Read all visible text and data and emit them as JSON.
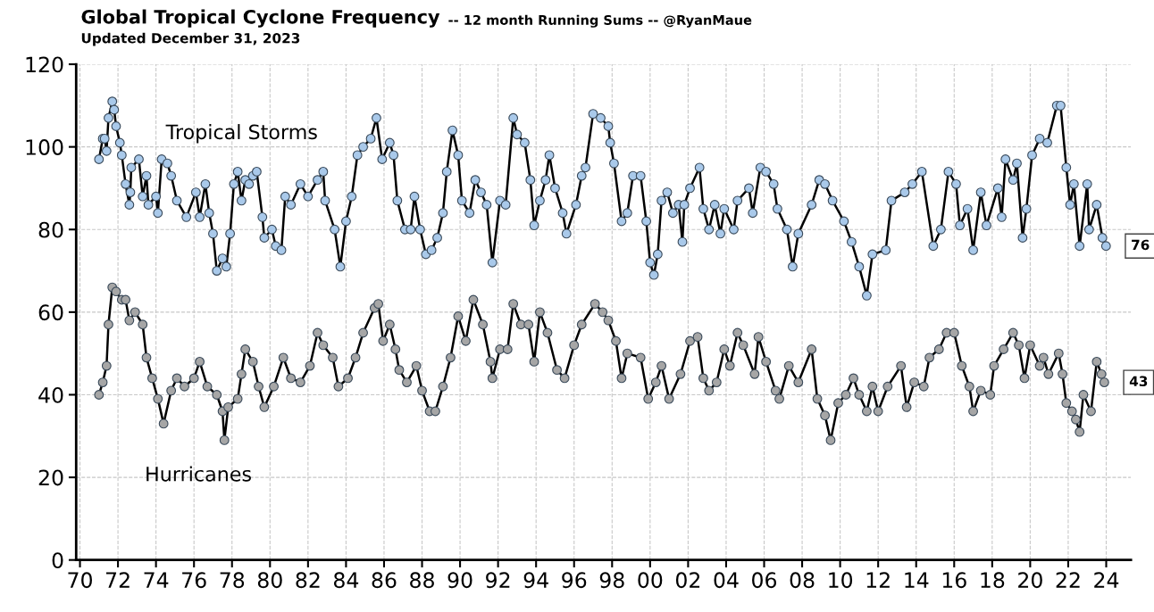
{
  "chart_data": {
    "type": "line",
    "title": "Global Tropical Cyclone Frequency",
    "subtitle": "Updated December 31, 2023",
    "annotations": [
      "-- 12 month Running Sums -- @RyanMaue",
      {
        "text": "76",
        "x": 2023.99,
        "y": 76
      },
      {
        "text": "43",
        "x": 2023.9,
        "y": 43
      }
    ],
    "series": [
      {
        "name": "Tropical Storms",
        "color": "#a9c9ea",
        "x": [
          1971.0,
          1971.2,
          1971.3,
          1971.4,
          1971.5,
          1971.7,
          1971.8,
          1971.9,
          1972.1,
          1972.2,
          1972.4,
          1972.6,
          1972.65,
          1972.7,
          1973.1,
          1973.3,
          1973.5,
          1973.6,
          1974.0,
          1974.1,
          1974.3,
          1974.6,
          1974.8,
          1975.1,
          1975.6,
          1976.1,
          1976.3,
          1976.6,
          1976.8,
          1977.0,
          1977.2,
          1977.5,
          1977.7,
          1977.9,
          1978.1,
          1978.3,
          1978.5,
          1978.7,
          1978.9,
          1979.1,
          1979.3,
          1979.6,
          1979.7,
          1980.1,
          1980.3,
          1980.6,
          1980.8,
          1981.1,
          1981.6,
          1982.0,
          1982.5,
          1982.8,
          1982.9,
          1983.4,
          1983.7,
          1984.0,
          1984.3,
          1984.6,
          1984.9,
          1985.3,
          1985.6,
          1985.9,
          1986.3,
          1986.5,
          1986.7,
          1987.1,
          1987.4,
          1987.6,
          1987.9,
          1988.2,
          1988.5,
          1988.8,
          1989.1,
          1989.3,
          1989.6,
          1989.9,
          1990.1,
          1990.5,
          1990.8,
          1991.1,
          1991.4,
          1991.7,
          1992.1,
          1992.4,
          1992.8,
          1993.0,
          1993.4,
          1993.7,
          1993.9,
          1994.2,
          1994.5,
          1994.7,
          1995.0,
          1995.4,
          1995.6,
          1996.1,
          1996.4,
          1996.6,
          1997.0,
          1997.4,
          1997.8,
          1997.9,
          1998.1,
          1998.5,
          1998.8,
          1999.1,
          1999.5,
          1999.8,
          2000.0,
          2000.2,
          2000.4,
          2000.6,
          2000.9,
          2001.2,
          2001.5,
          2001.7,
          2001.8,
          2002.1,
          2002.6,
          2002.8,
          2003.1,
          2003.4,
          2003.7,
          2003.9,
          2004.4,
          2004.6,
          2005.2,
          2005.4,
          2005.8,
          2006.1,
          2006.5,
          2006.7,
          2007.2,
          2007.5,
          2007.8,
          2008.5,
          2008.9,
          2009.2,
          2009.6,
          2010.2,
          2010.6,
          2011.0,
          2011.4,
          2011.7,
          2012.4,
          2012.7,
          2013.4,
          2013.8,
          2014.3,
          2014.9,
          2015.3,
          2015.7,
          2016.1,
          2016.3,
          2016.7,
          2017.0,
          2017.4,
          2017.7,
          2018.3,
          2018.5,
          2018.7,
          2019.1,
          2019.3,
          2019.6,
          2019.8,
          2020.1,
          2020.5,
          2020.9,
          2021.4,
          2021.6,
          2021.9,
          2022.1,
          2022.3,
          2022.6,
          2023.0,
          2023.1,
          2023.5,
          2023.8,
          2023.99
        ],
        "values": [
          97,
          102,
          102,
          99,
          107,
          111,
          109,
          105,
          101,
          98,
          91,
          86,
          89,
          95,
          97,
          88,
          93,
          86,
          88,
          84,
          97,
          96,
          93,
          87,
          83,
          89,
          83,
          91,
          84,
          79,
          70,
          73,
          71,
          79,
          91,
          94,
          87,
          92,
          91,
          93,
          94,
          83,
          78,
          80,
          76,
          75,
          88,
          86,
          91,
          88,
          92,
          94,
          87,
          80,
          71,
          82,
          88,
          98,
          100,
          102,
          107,
          97,
          101,
          98,
          87,
          80,
          80,
          88,
          80,
          74,
          75,
          78,
          84,
          94,
          104,
          98,
          87,
          84,
          92,
          89,
          86,
          72,
          87,
          86,
          107,
          103,
          101,
          92,
          81,
          87,
          92,
          98,
          90,
          84,
          79,
          86,
          93,
          95,
          108,
          107,
          105,
          101,
          96,
          82,
          84,
          93,
          93,
          82,
          72,
          69,
          74,
          87,
          89,
          84,
          86,
          77,
          86,
          90,
          95,
          85,
          80,
          86,
          79,
          85,
          80,
          87,
          90,
          84,
          95,
          94,
          91,
          85,
          80,
          71,
          79,
          86,
          92,
          91,
          87,
          82,
          77,
          71,
          64,
          74,
          75,
          87,
          89,
          91,
          94,
          76,
          80,
          94,
          91,
          81,
          85,
          75,
          89,
          81,
          90,
          83,
          97,
          92,
          96,
          78,
          85,
          98,
          102,
          101,
          110,
          110,
          95,
          86,
          91,
          76,
          91,
          80,
          86,
          78,
          76
        ]
      },
      {
        "name": "Hurricanes",
        "color": "#a6a6a6",
        "x": [
          1971.0,
          1971.2,
          1971.4,
          1971.5,
          1971.7,
          1971.9,
          1972.2,
          1972.4,
          1972.6,
          1972.9,
          1973.3,
          1973.5,
          1973.8,
          1974.1,
          1974.4,
          1974.8,
          1975.1,
          1975.5,
          1976.0,
          1976.3,
          1976.7,
          1977.2,
          1977.5,
          1977.6,
          1977.8,
          1978.3,
          1978.5,
          1978.7,
          1979.1,
          1979.4,
          1979.7,
          1980.2,
          1980.7,
          1981.1,
          1981.6,
          1982.1,
          1982.5,
          1982.8,
          1983.3,
          1983.6,
          1984.1,
          1984.5,
          1984.9,
          1985.5,
          1985.7,
          1985.95,
          1986.3,
          1986.6,
          1986.8,
          1987.2,
          1987.7,
          1988.0,
          1988.4,
          1988.7,
          1989.1,
          1989.5,
          1989.9,
          1990.3,
          1990.7,
          1991.2,
          1991.6,
          1991.7,
          1992.1,
          1992.5,
          1992.8,
          1993.2,
          1993.6,
          1993.9,
          1994.2,
          1994.6,
          1995.1,
          1995.5,
          1996.0,
          1996.4,
          1997.1,
          1997.5,
          1997.8,
          1998.2,
          1998.5,
          1998.8,
          1999.5,
          1999.9,
          2000.3,
          2000.6,
          2001.0,
          2001.6,
          2002.1,
          2002.5,
          2002.8,
          2003.1,
          2003.5,
          2003.9,
          2004.2,
          2004.6,
          2004.9,
          2005.5,
          2005.7,
          2006.1,
          2006.6,
          2006.8,
          2007.3,
          2007.8,
          2008.5,
          2008.8,
          2009.2,
          2009.5,
          2009.9,
          2010.3,
          2010.7,
          2011.0,
          2011.4,
          2011.7,
          2012.0,
          2012.5,
          2013.2,
          2013.5,
          2013.9,
          2014.4,
          2014.7,
          2015.2,
          2015.6,
          2016.0,
          2016.4,
          2016.8,
          2017.0,
          2017.4,
          2017.9,
          2018.1,
          2018.6,
          2019.1,
          2019.4,
          2019.7,
          2020.0,
          2020.5,
          2020.7,
          2020.96,
          2021.5,
          2021.7,
          2021.9,
          2022.2,
          2022.4,
          2022.6,
          2022.8,
          2023.2,
          2023.5,
          2023.75,
          2023.9
        ],
        "values": [
          40,
          43,
          47,
          57,
          66,
          65,
          63,
          63,
          58,
          60,
          57,
          49,
          44,
          39,
          33,
          41,
          44,
          42,
          44,
          48,
          42,
          40,
          36,
          29,
          37,
          39,
          45,
          51,
          48,
          42,
          37,
          42,
          49,
          44,
          43,
          47,
          55,
          52,
          49,
          42,
          44,
          49,
          55,
          61,
          62,
          53,
          57,
          51,
          46,
          43,
          47,
          41,
          36,
          36,
          42,
          49,
          59,
          53,
          63,
          57,
          48,
          44,
          51,
          51,
          62,
          57,
          57,
          48,
          60,
          55,
          46,
          44,
          52,
          57,
          62,
          60,
          58,
          53,
          44,
          50,
          49,
          39,
          43,
          47,
          39,
          45,
          53,
          54,
          44,
          41,
          43,
          51,
          47,
          55,
          52,
          45,
          54,
          48,
          41,
          39,
          47,
          43,
          51,
          39,
          35,
          29,
          38,
          40,
          44,
          40,
          36,
          42,
          36,
          42,
          47,
          37,
          43,
          42,
          49,
          51,
          55,
          55,
          47,
          42,
          36,
          41,
          40,
          47,
          51,
          55,
          52,
          44,
          52,
          47,
          49,
          45,
          50,
          45,
          38,
          36,
          34,
          31,
          40,
          36,
          48,
          45,
          43
        ]
      }
    ],
    "xlim": [
      1969.8,
      2025.3
    ],
    "ylim": [
      0,
      120
    ],
    "xticks": [
      {
        "value": 1970,
        "label": "70"
      },
      {
        "value": 1972,
        "label": "72"
      },
      {
        "value": 1974,
        "label": "74"
      },
      {
        "value": 1976,
        "label": "76"
      },
      {
        "value": 1978,
        "label": "78"
      },
      {
        "value": 1980,
        "label": "80"
      },
      {
        "value": 1982,
        "label": "82"
      },
      {
        "value": 1984,
        "label": "84"
      },
      {
        "value": 1986,
        "label": "86"
      },
      {
        "value": 1988,
        "label": "88"
      },
      {
        "value": 1990,
        "label": "90"
      },
      {
        "value": 1992,
        "label": "92"
      },
      {
        "value": 1994,
        "label": "94"
      },
      {
        "value": 1996,
        "label": "96"
      },
      {
        "value": 1998,
        "label": "98"
      },
      {
        "value": 2000,
        "label": "00"
      },
      {
        "value": 2002,
        "label": "02"
      },
      {
        "value": 2004,
        "label": "04"
      },
      {
        "value": 2006,
        "label": "06"
      },
      {
        "value": 2008,
        "label": "08"
      },
      {
        "value": 2010,
        "label": "10"
      },
      {
        "value": 2012,
        "label": "12"
      },
      {
        "value": 2014,
        "label": "14"
      },
      {
        "value": 2016,
        "label": "16"
      },
      {
        "value": 2018,
        "label": "18"
      },
      {
        "value": 2020,
        "label": "20"
      },
      {
        "value": 2022,
        "label": "22"
      },
      {
        "value": 2024,
        "label": "24"
      }
    ],
    "yticks": [
      0,
      20,
      40,
      60,
      80,
      100,
      120
    ],
    "grid": true,
    "legend": false,
    "marker": "circle",
    "line_style": "solid"
  }
}
